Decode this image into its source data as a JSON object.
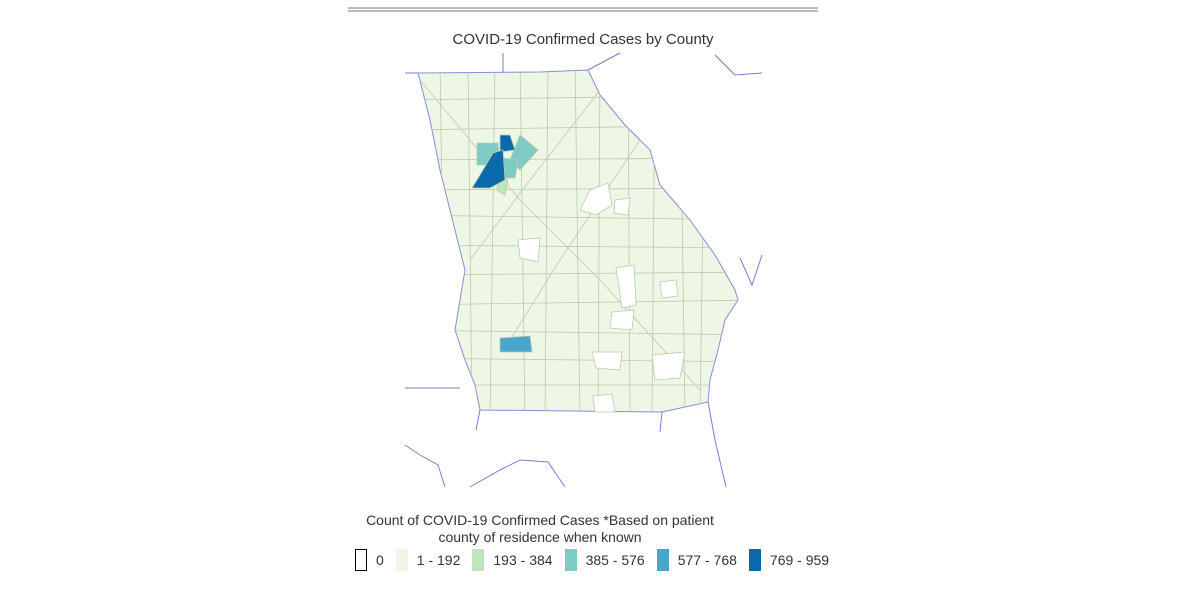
{
  "header": {
    "title": "COVID-19 Confirmed Cases by County"
  },
  "legend": {
    "title": "Count of COVID-19 Confirmed Cases *Based on patient county of residence when known",
    "items": [
      {
        "label": "0",
        "color": "#ffffff",
        "outline": "#000000"
      },
      {
        "label": "1 - 192",
        "color": "#eef7e6"
      },
      {
        "label": "193 - 384",
        "color": "#bfe5bf"
      },
      {
        "label": "385 - 576",
        "color": "#7dcbc4"
      },
      {
        "label": "577 - 768",
        "color": "#4aa6cf"
      },
      {
        "label": "769 - 959",
        "color": "#0a6aab"
      }
    ]
  }
}
